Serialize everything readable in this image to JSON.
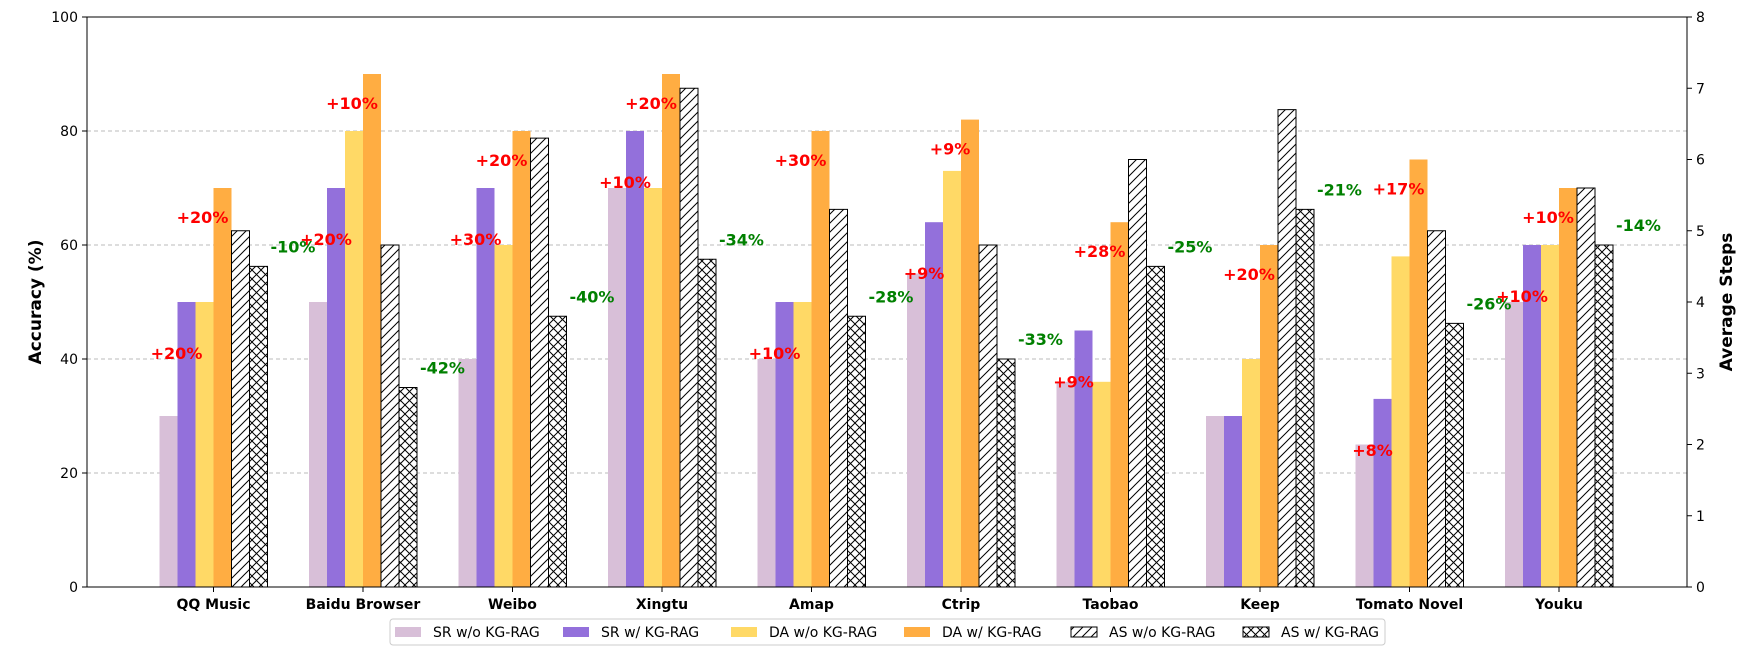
{
  "chart_data": {
    "type": "bar",
    "categories": [
      "QQ Music",
      "Baidu Browser",
      "Weibo",
      "Xingtu",
      "Amap",
      "Ctrip",
      "Taobao",
      "Keep",
      "Tomato Novel",
      "Youku"
    ],
    "y_left": {
      "label": "Accuracy (%)",
      "lim": [
        0,
        100
      ],
      "ticks": [
        0,
        20,
        40,
        60,
        80,
        100
      ]
    },
    "y_right": {
      "label": "Average Steps",
      "lim": [
        0,
        8
      ],
      "ticks": [
        0,
        1,
        2,
        3,
        4,
        5,
        6,
        7,
        8
      ]
    },
    "grid": "horizontal dashed",
    "series": [
      {
        "name": "SR w/o KG-RAG",
        "axis": "left",
        "color": "#d8bfd8",
        "values": [
          30,
          50,
          40,
          70,
          40,
          55,
          36,
          30,
          25,
          50
        ]
      },
      {
        "name": "SR w/ KG-RAG",
        "axis": "left",
        "color": "#9370db",
        "values": [
          50,
          70,
          70,
          80,
          50,
          64,
          45,
          30,
          33,
          60
        ]
      },
      {
        "name": "DA w/o KG-RAG",
        "axis": "left",
        "color": "#ffd966",
        "values": [
          50,
          80,
          60,
          70,
          50,
          73,
          36,
          40,
          58,
          60
        ]
      },
      {
        "name": "DA w/ KG-RAG",
        "axis": "left",
        "color": "#ffad42",
        "values": [
          70,
          90,
          80,
          90,
          80,
          82,
          64,
          60,
          75,
          70
        ]
      },
      {
        "name": "AS w/o KG-RAG",
        "axis": "right",
        "pattern": "hatch-diag",
        "values": [
          5.0,
          4.8,
          6.3,
          7.0,
          5.3,
          4.8,
          6.0,
          6.7,
          5.0,
          5.6
        ]
      },
      {
        "name": "AS w/ KG-RAG",
        "axis": "right",
        "pattern": "hatch-cross",
        "values": [
          4.5,
          2.8,
          3.8,
          4.6,
          3.8,
          3.2,
          4.5,
          5.3,
          3.7,
          4.8
        ]
      }
    ],
    "annotations": {
      "sr_gain": [
        "+20%",
        "+20%",
        "+30%",
        "+10%",
        "+10%",
        "+9%",
        "+9%",
        "",
        "+8%",
        "+10%"
      ],
      "da_gain": [
        "+20%",
        "+10%",
        "+20%",
        "+20%",
        "+30%",
        "+9%",
        "+28%",
        "+20%",
        "+17%",
        "+10%"
      ],
      "as_change": [
        "-10%",
        "-42%",
        "-40%",
        "-34%",
        "-28%",
        "-33%",
        "-25%",
        "-21%",
        "-26%",
        "-14%"
      ]
    },
    "legend_position": "bottom-center"
  }
}
